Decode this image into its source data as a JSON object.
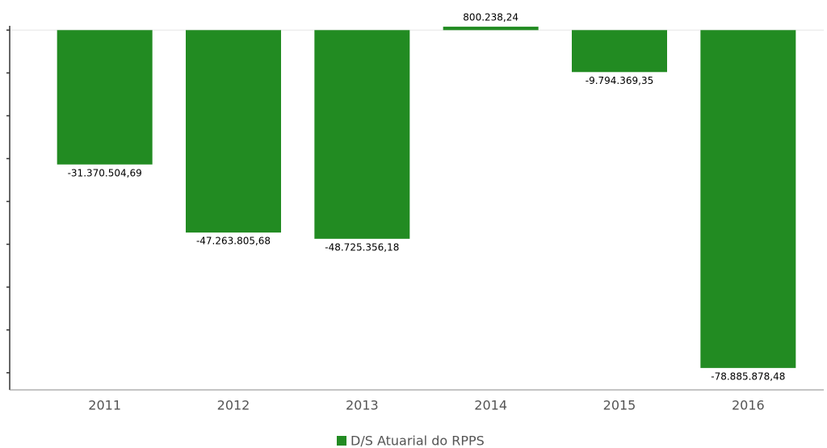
{
  "chart_data": {
    "type": "bar",
    "categories": [
      "2011",
      "2012",
      "2013",
      "2014",
      "2015",
      "2016"
    ],
    "series": [
      {
        "name": "D/S Atuarial do RPPS",
        "color": "#228b22",
        "values": [
          -31370504.69,
          -47263805.68,
          -48725356.18,
          800238.24,
          -9794369.35,
          -78885878.48
        ],
        "value_labels": [
          "-31.370.504,69",
          "-47.263.805,68",
          "-48.725.356,18",
          "800.238,24",
          "-9.794.369,35",
          "-78.885.878,48"
        ]
      }
    ],
    "ylim": [
      -84000000,
      1000000
    ],
    "yticks": [
      0,
      -10000000,
      -20000000,
      -30000000,
      -40000000,
      -50000000,
      -60000000,
      -70000000,
      -80000000
    ],
    "legend": "bottom"
  }
}
